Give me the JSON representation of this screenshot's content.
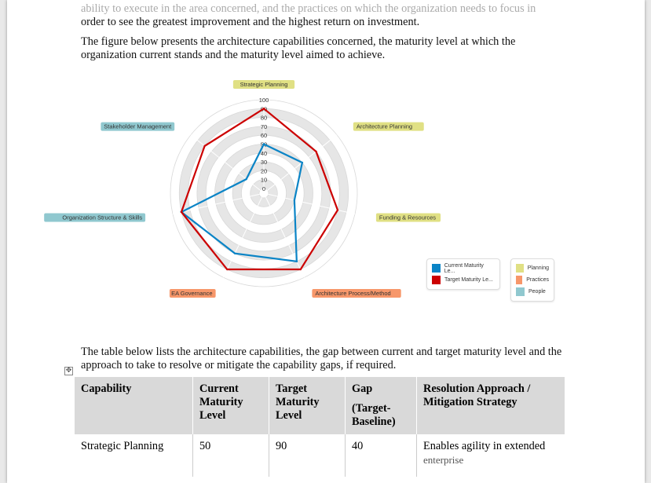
{
  "text": {
    "para1_line1": "ability to execute in the area concerned, and the practices on which the organization needs to focus in",
    "para1_line2": "order to see the greatest improvement and the highest return on investment.",
    "para2": "The figure below presents the architecture capabilities concerned, the maturity level at which the organization current stands and the maturity level aimed to achieve.",
    "para3": "The table below lists the architecture capabilities, the gap between current and target maturity level and the approach to take to resolve or mitigate the capability gaps, if required."
  },
  "chart_data": {
    "type": "radar",
    "categories": [
      "Strategic Planning",
      "Architecture Planning",
      "Funding & Resources",
      "Architecture Process/Method",
      "EA Governance",
      "Organization Structure & Skills",
      "Stakeholder Management"
    ],
    "category_groups": [
      "Planning",
      "Planning",
      "Planning",
      "Practices",
      "Practices",
      "People",
      "People"
    ],
    "ticks": [
      "0",
      "10",
      "20",
      "30",
      "40",
      "50",
      "60",
      "70",
      "80",
      "90",
      "100"
    ],
    "rlim": [
      0,
      100
    ],
    "series": [
      {
        "name": "Current Maturity Le...",
        "color": "#0a84c6",
        "values": [
          50,
          50,
          30,
          80,
          70,
          90,
          20
        ]
      },
      {
        "name": "Target Maturity Le...",
        "color": "#cc0000",
        "values": [
          90,
          70,
          80,
          90,
          90,
          90,
          80
        ]
      }
    ],
    "groups": [
      {
        "name": "Planning",
        "color": "#e0e084"
      },
      {
        "name": "Practices",
        "color": "#f7976a"
      },
      {
        "name": "People",
        "color": "#90c8cf"
      }
    ]
  },
  "table": {
    "headers": [
      "Capability",
      "Current Maturity Level",
      "Target Maturity Level",
      "Gap",
      "(Target-Baseline)",
      "Resolution Approach / Mitigation Strategy"
    ],
    "rows": [
      [
        "Strategic Planning",
        "50",
        "90",
        "40",
        "Enables agility in extended",
        "enterprise"
      ]
    ]
  },
  "icons": {
    "table_move": "move-handle-icon"
  }
}
